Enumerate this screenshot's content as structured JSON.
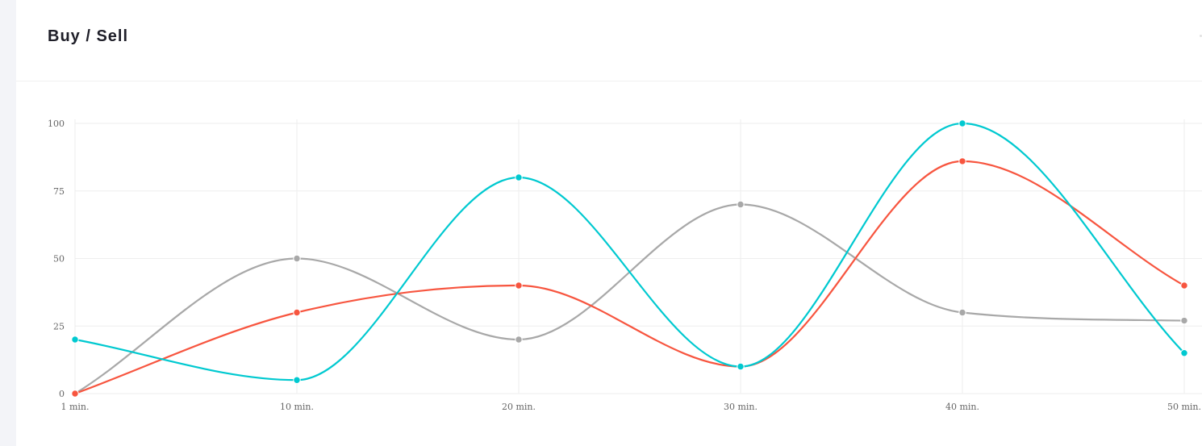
{
  "card": {
    "title": "Buy / Sell"
  },
  "chart_data": {
    "type": "line",
    "title": "Buy / Sell",
    "xlabel": "",
    "ylabel": "",
    "categories": [
      "1 min.",
      "10 min.",
      "20 min.",
      "30 min.",
      "40 min.",
      "50 min."
    ],
    "ylim": [
      0,
      100
    ],
    "yticks": [
      0,
      25,
      50,
      75,
      100
    ],
    "grid": true,
    "legend": "none",
    "smooth": true,
    "series": [
      {
        "color": "#00c9d0",
        "values": [
          20,
          5,
          80,
          10,
          100,
          15
        ]
      },
      {
        "color": "#f7553f",
        "values": [
          0,
          30,
          40,
          10,
          86,
          40
        ]
      },
      {
        "color": "#a8a8a8",
        "values": [
          0,
          50,
          20,
          70,
          30,
          27
        ]
      }
    ]
  }
}
